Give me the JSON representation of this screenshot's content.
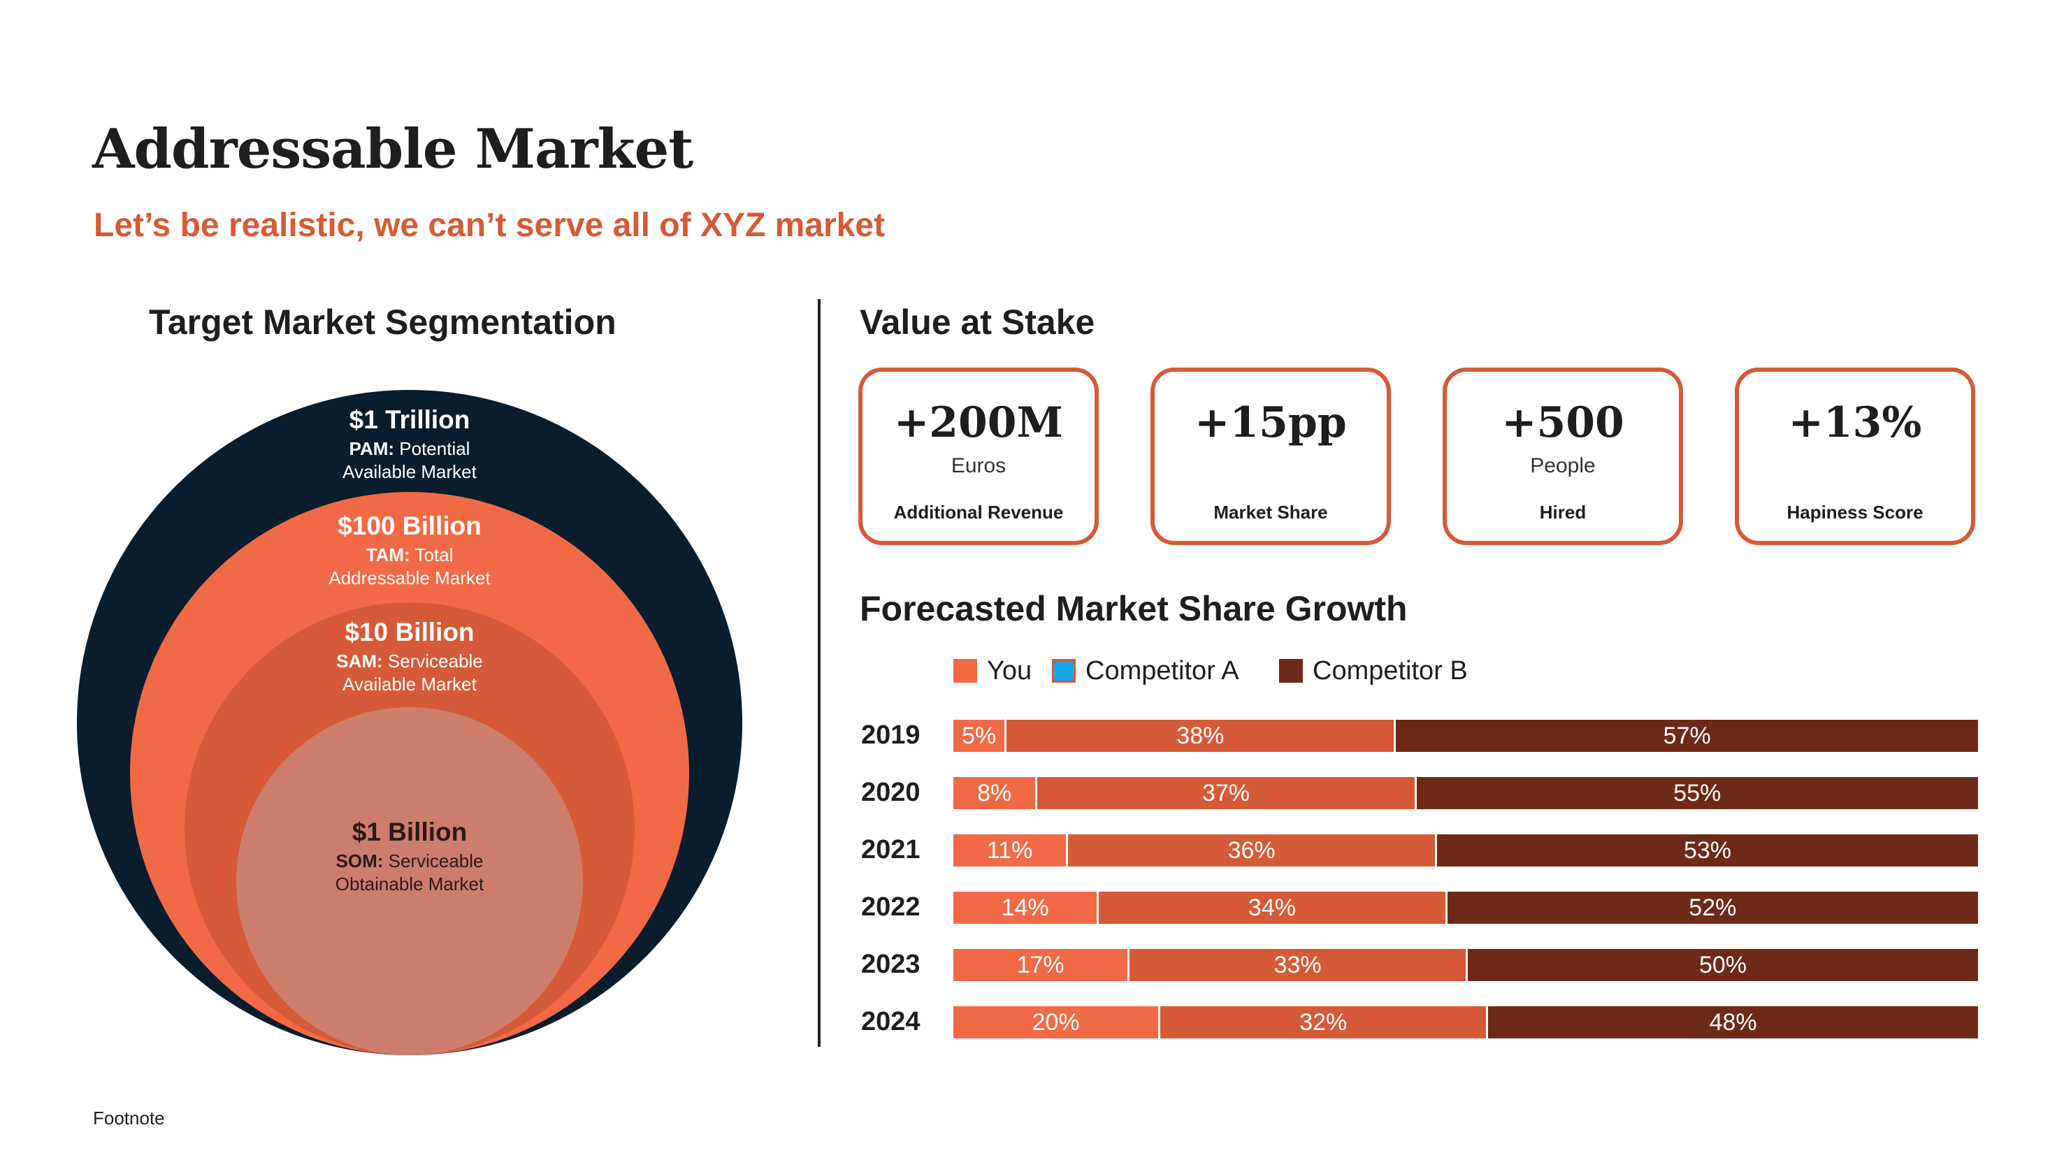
{
  "title": "Addressable Market",
  "subtitle": "Let’s be realistic, we can’t serve all of XYZ market",
  "segmentation": {
    "heading": "Target Market Segmentation",
    "pam": {
      "amount": "$1 Trillion",
      "abbr": "PAM:",
      "line1": "Potential",
      "line2": "Available Market"
    },
    "tam": {
      "amount": "$100 Billion",
      "abbr": "TAM:",
      "line1": "Total",
      "line2": "Addressable Market"
    },
    "sam": {
      "amount": "$10 Billion",
      "abbr": "SAM:",
      "line1": "Serviceable",
      "line2": "Available Market"
    },
    "som": {
      "amount": "$1 Billion",
      "abbr": "SOM:",
      "line1": "Serviceable",
      "line2": "Obtainable Market"
    }
  },
  "value_at_stake": {
    "heading": "Value at Stake",
    "cards": [
      {
        "value": "+200M",
        "unit": "Euros",
        "caption": "Additional Revenue"
      },
      {
        "value": "+15pp",
        "unit": "",
        "caption": "Market Share"
      },
      {
        "value": "+500",
        "unit": "People",
        "caption": "Hired"
      },
      {
        "value": "+13%",
        "unit": "",
        "caption": "Hapiness Score"
      }
    ]
  },
  "colors": {
    "accent": "#d65a34",
    "navy": "#091d2d",
    "you": "#f26a45",
    "competitor_a": "#d65a37",
    "competitor_b": "#6e2917",
    "legend_competitor_a": "#1aa3e8"
  },
  "chart_data": {
    "type": "bar",
    "orientation": "horizontal-stacked-100",
    "title": "Forecasted Market Share Growth",
    "categories": [
      "2019",
      "2020",
      "2021",
      "2022",
      "2023",
      "2024"
    ],
    "series": [
      {
        "name": "You",
        "values": [
          5,
          8,
          11,
          14,
          17,
          20
        ]
      },
      {
        "name": "Competitor A",
        "values": [
          38,
          37,
          36,
          34,
          33,
          32
        ]
      },
      {
        "name": "Competitor B",
        "values": [
          57,
          55,
          53,
          52,
          50,
          48
        ]
      }
    ],
    "value_suffix": "%",
    "legend": "top-left"
  },
  "footnote": "Footnote"
}
